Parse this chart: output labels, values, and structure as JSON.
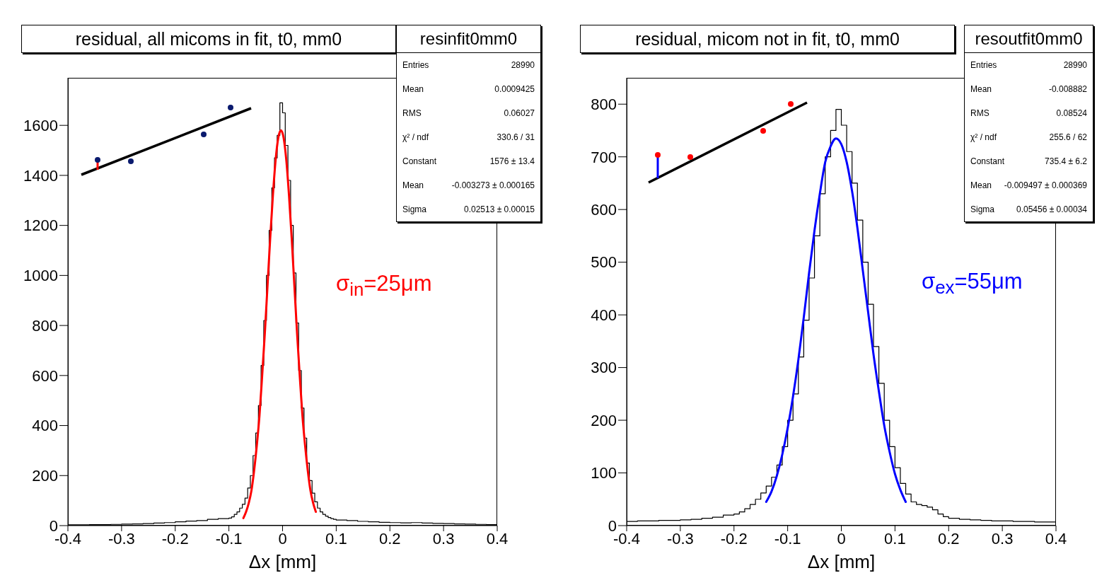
{
  "chart_data": [
    {
      "type": "histogram",
      "title": "residual, all micoms in fit, t0, mm0",
      "subtitle": "resinfit0mm0",
      "xlabel": "Δx [mm]",
      "color": "#000000",
      "bins": [
        -0.4,
        -0.38,
        -0.36,
        -0.34,
        -0.32,
        -0.3,
        -0.28,
        -0.26,
        -0.24,
        -0.22,
        -0.2,
        -0.18,
        -0.16,
        -0.14,
        -0.12,
        -0.1,
        -0.095,
        -0.09,
        -0.085,
        -0.08,
        -0.075,
        -0.07,
        -0.065,
        -0.06,
        -0.055,
        -0.05,
        -0.045,
        -0.04,
        -0.035,
        -0.03,
        -0.025,
        -0.02,
        -0.015,
        -0.01,
        -0.005,
        0,
        0.005,
        0.01,
        0.015,
        0.02,
        0.025,
        0.03,
        0.035,
        0.04,
        0.045,
        0.05,
        0.055,
        0.06,
        0.065,
        0.07,
        0.075,
        0.08,
        0.085,
        0.09,
        0.095,
        0.1,
        0.12,
        0.14,
        0.16,
        0.18,
        0.2,
        0.22,
        0.24,
        0.26,
        0.28,
        0.3,
        0.32,
        0.34,
        0.36,
        0.38,
        0.4
      ],
      "values": [
        3,
        3,
        4,
        4,
        5,
        6,
        7,
        8,
        10,
        12,
        15,
        18,
        20,
        25,
        28,
        30,
        35,
        45,
        55,
        70,
        85,
        110,
        150,
        200,
        280,
        370,
        480,
        640,
        820,
        1000,
        1180,
        1350,
        1470,
        1560,
        1690,
        1650,
        1520,
        1380,
        1200,
        1010,
        810,
        620,
        470,
        350,
        250,
        180,
        130,
        95,
        70,
        55,
        45,
        38,
        32,
        28,
        25,
        22,
        20,
        17,
        15,
        13,
        12,
        11,
        12,
        10,
        9,
        8,
        7,
        6,
        5,
        4
      ],
      "series": [
        {
          "type": "line",
          "color": "#ff0000",
          "x": [
            -0.073,
            -0.068,
            -0.063,
            -0.058,
            -0.053,
            -0.048,
            -0.043,
            -0.038,
            -0.033,
            -0.028,
            -0.023,
            -0.018,
            -0.013,
            -0.008,
            -0.003,
            0.002,
            0.007,
            0.012,
            0.017,
            0.022,
            0.027,
            0.032,
            0.037,
            0.042,
            0.047,
            0.052,
            0.057,
            0.062
          ],
          "values": [
            30,
            55,
            90,
            140,
            220,
            320,
            440,
            600,
            770,
            960,
            1150,
            1320,
            1460,
            1550,
            1580,
            1550,
            1460,
            1320,
            1150,
            960,
            770,
            600,
            440,
            320,
            220,
            140,
            90,
            55
          ]
        }
      ],
      "xlim": [
        -0.4,
        0.4
      ],
      "xticks": [
        -0.4,
        -0.3,
        -0.2,
        -0.1,
        0,
        0.1,
        0.2,
        0.3,
        0.4
      ],
      "ylim": [
        0,
        1790
      ],
      "yticks": [
        0,
        200,
        400,
        600,
        800,
        1000,
        1200,
        1400,
        1600
      ],
      "marker": "none",
      "annotations": [
        "Entries  28990",
        "Mean  0.0009425",
        "RMS  0.06027",
        "χ² / ndf  330.6 / 31",
        "Constant  1576 ± 13.4",
        "Mean  -0.003273 ± 0.000165",
        "Sigma  0.02513 ± 0.00015",
        "σ$_{in}$=25μm"
      ]
    },
    {
      "type": "histogram",
      "title": "residual, micom not in fit, t0, mm0",
      "subtitle": "resoutfit0mm0",
      "xlabel": "Δx [mm]",
      "color": "#000000",
      "bins": [
        -0.4,
        -0.38,
        -0.36,
        -0.34,
        -0.32,
        -0.3,
        -0.28,
        -0.26,
        -0.24,
        -0.22,
        -0.2,
        -0.19,
        -0.18,
        -0.17,
        -0.16,
        -0.15,
        -0.14,
        -0.13,
        -0.12,
        -0.11,
        -0.1,
        -0.09,
        -0.08,
        -0.07,
        -0.06,
        -0.05,
        -0.04,
        -0.03,
        -0.02,
        -0.01,
        0,
        0.01,
        0.02,
        0.03,
        0.04,
        0.05,
        0.06,
        0.07,
        0.08,
        0.09,
        0.1,
        0.11,
        0.12,
        0.13,
        0.14,
        0.15,
        0.16,
        0.17,
        0.18,
        0.19,
        0.2,
        0.22,
        0.24,
        0.26,
        0.28,
        0.3,
        0.32,
        0.34,
        0.36,
        0.38,
        0.4
      ],
      "values": [
        8,
        9,
        9,
        10,
        10,
        11,
        12,
        14,
        16,
        20,
        22,
        26,
        32,
        40,
        50,
        62,
        75,
        92,
        115,
        150,
        200,
        250,
        320,
        390,
        470,
        550,
        630,
        700,
        750,
        790,
        760,
        710,
        650,
        580,
        500,
        420,
        340,
        270,
        200,
        150,
        110,
        80,
        60,
        45,
        40,
        38,
        35,
        30,
        22,
        17,
        14,
        12,
        11,
        10,
        9,
        9,
        8,
        8,
        7,
        7
      ],
      "series": [
        {
          "type": "line",
          "color": "#0000ff",
          "x": [
            -0.14,
            -0.13,
            -0.12,
            -0.11,
            -0.1,
            -0.09,
            -0.08,
            -0.07,
            -0.06,
            -0.05,
            -0.04,
            -0.03,
            -0.02,
            -0.01,
            0,
            0.01,
            0.02,
            0.03,
            0.04,
            0.05,
            0.06,
            0.07,
            0.08,
            0.09,
            0.1,
            0.11,
            0.12
          ],
          "values": [
            45,
            65,
            95,
            135,
            185,
            245,
            315,
            395,
            480,
            560,
            630,
            690,
            720,
            735,
            724,
            690,
            635,
            565,
            485,
            405,
            325,
            255,
            190,
            140,
            98,
            68,
            45
          ]
        }
      ],
      "xlim": [
        -0.4,
        0.4
      ],
      "xticks": [
        -0.4,
        -0.3,
        -0.2,
        -0.1,
        0,
        0.1,
        0.2,
        0.3,
        0.4
      ],
      "ylim": [
        0,
        850
      ],
      "yticks": [
        0,
        100,
        200,
        300,
        400,
        500,
        600,
        700,
        800
      ],
      "marker": "none",
      "annotations": [
        "Entries  28990",
        "Mean  -0.008882",
        "RMS  0.08524",
        "χ² / ndf  255.6 / 62",
        "Constant  735.4 ± 6.2",
        "Mean  -0.009497 ± 0.000369",
        "Sigma  0.05456 ± 0.00034",
        "σ$_{ex}$=55μm"
      ]
    }
  ]
}
